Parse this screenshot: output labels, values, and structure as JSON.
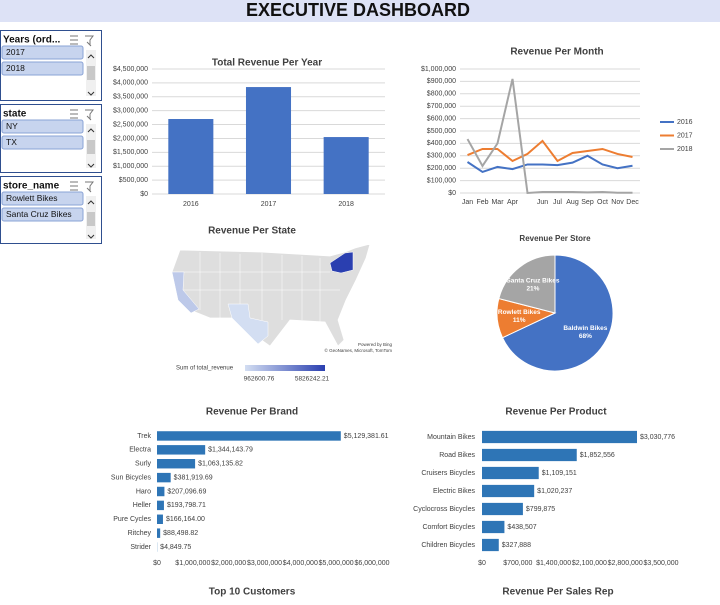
{
  "header": {
    "title": "EXECUTIVE DASHBOARD"
  },
  "slicers": [
    {
      "title": "Years (ord...",
      "items": [
        "2017",
        "2018"
      ]
    },
    {
      "title": "state",
      "items": [
        "NY",
        "TX"
      ]
    },
    {
      "title": "store_name",
      "items": [
        "Rowlett Bikes",
        "Santa Cruz Bikes"
      ]
    }
  ],
  "sections": [
    "Top 10 Customers",
    "Revenue Per Sales Rep"
  ],
  "chart_data": [
    {
      "type": "bar",
      "title": "Total Revenue Per Year",
      "categories": [
        "2016",
        "2017",
        "2018"
      ],
      "values": [
        2700000,
        3850000,
        2050000
      ],
      "color": "#4472c4",
      "grid": true,
      "ylim": [
        0,
        4500000
      ],
      "yticks": [
        {
          "value": 0,
          "label": "$0"
        },
        {
          "value": 500000,
          "label": "$500,000"
        },
        {
          "value": 1000000,
          "label": "$1,000,000"
        },
        {
          "value": 1500000,
          "label": "$1,500,000"
        },
        {
          "value": 2000000,
          "label": "$2,000,000"
        },
        {
          "value": 2500000,
          "label": "$2,500,000"
        },
        {
          "value": 3000000,
          "label": "$3,000,000"
        },
        {
          "value": 3500000,
          "label": "$3,500,000"
        },
        {
          "value": 4000000,
          "label": "$4,000,000"
        },
        {
          "value": 4500000,
          "label": "$4,500,000"
        }
      ]
    },
    {
      "type": "line",
      "title": "Revenue Per Month",
      "grid": true,
      "legend": "right",
      "categories": [
        "Jan",
        "Feb",
        "Mar",
        "Apr",
        null,
        "Jun",
        "Jul",
        "Aug",
        "Sep",
        "Oct",
        "Nov",
        "Dec"
      ],
      "series": [
        {
          "name": "2016",
          "color": "#4472c4",
          "values": [
            250000,
            170000,
            210000,
            193000,
            230000,
            230000,
            225000,
            245000,
            300000,
            230000,
            200000,
            220000
          ]
        },
        {
          "name": "2017",
          "color": "#ed7d31",
          "values": [
            306000,
            355000,
            355000,
            258000,
            315000,
            420000,
            258000,
            323000,
            339000,
            355000,
            315000,
            290000
          ]
        },
        {
          "name": "2018",
          "color": "#a5a5a5",
          "values": [
            435000,
            218000,
            400000,
            920000,
            0,
            8000,
            8000,
            8000,
            5000,
            8000,
            2000,
            2000
          ]
        }
      ],
      "ylim": [
        0,
        1000000
      ],
      "yticks": [
        {
          "value": 0,
          "label": "$0"
        },
        {
          "value": 100000,
          "label": "$100,000"
        },
        {
          "value": 200000,
          "label": "$200,000"
        },
        {
          "value": 300000,
          "label": "$300,000"
        },
        {
          "value": 400000,
          "label": "$400,000"
        },
        {
          "value": 500000,
          "label": "$500,000"
        },
        {
          "value": 600000,
          "label": "$600,000"
        },
        {
          "value": 700000,
          "label": "$700,000"
        },
        {
          "value": 800000,
          "label": "$800,000"
        },
        {
          "value": 900000,
          "label": "$900,000"
        },
        {
          "value": 1000000,
          "label": "$1,000,000"
        }
      ]
    },
    {
      "type": "map",
      "title": "Revenue Per State",
      "legend_title": "Sum of total_revenue",
      "values": [
        1605000,
        962600.76,
        5826242.21
      ],
      "color_range": [
        962600.76,
        5826242.21
      ],
      "colors": [
        "#d3def2",
        "#2a3fb0"
      ],
      "base_color": "#dedede",
      "credits": [
        "Powered by Bing",
        "© GeoNames, Microsoft, TomTom"
      ]
    },
    {
      "type": "pie",
      "title": "Revenue Per Store",
      "categories": [
        "Baldwin Bikes",
        "Rowlett Bikes",
        "Santa Cruz Bikes"
      ],
      "values": [
        68,
        11,
        21
      ],
      "value_labels": [
        "68%",
        "11%",
        "21%"
      ],
      "colors": [
        "#4472c4",
        "#ed7d31",
        "#a5a5a5"
      ]
    },
    {
      "type": "bar",
      "horizontal": true,
      "title": "Revenue Per Brand",
      "color": "#2e75b6",
      "grid": false,
      "categories": [
        "Trek",
        "Electra",
        "Surly",
        "Sun Bicycles",
        "Haro",
        "Heller",
        "Pure Cycles",
        "Ritchey",
        "Strider"
      ],
      "values": [
        5129381.61,
        1344143.79,
        1063135.82,
        381919.69,
        207096.69,
        193798.71,
        166164.0,
        88498.82,
        4849.75
      ],
      "value_labels": [
        "$5,129,381.61",
        "$1,344,143.79",
        "$1,063,135.82",
        "$381,919.69",
        "$207,096.69",
        "$193,798.71",
        "$166,164.00",
        "$88,498.82",
        "$4,849.75"
      ],
      "xlim": [
        0,
        6000000
      ],
      "xticks": [
        {
          "value": 0,
          "label": "$0"
        },
        {
          "value": 1000000,
          "label": "$1,000,000"
        },
        {
          "value": 2000000,
          "label": "$2,000,000"
        },
        {
          "value": 3000000,
          "label": "$3,000,000"
        },
        {
          "value": 4000000,
          "label": "$4,000,000"
        },
        {
          "value": 5000000,
          "label": "$5,000,000"
        },
        {
          "value": 6000000,
          "label": "$6,000,000"
        }
      ]
    },
    {
      "type": "bar",
      "horizontal": true,
      "title": "Revenue Per Product",
      "color": "#2e75b6",
      "grid": false,
      "categories": [
        "Mountain Bikes",
        "Road Bikes",
        "Cruisers Bicycles",
        "Electric Bikes",
        "Cyclocross Bicycles",
        "Comfort Bicycles",
        "Children Bicycles"
      ],
      "values": [
        3030776,
        1852556,
        1109151,
        1020237,
        799875,
        438507,
        327888
      ],
      "value_labels": [
        "$3,030,776",
        "$1,852,556",
        "$1,109,151",
        "$1,020,237",
        "$799,875",
        "$438,507",
        "$327,888"
      ],
      "xlim": [
        0,
        3500000
      ],
      "xticks": [
        {
          "value": 0,
          "label": "$0"
        },
        {
          "value": 700000,
          "label": "$700,000"
        },
        {
          "value": 1400000,
          "label": "$1,400,000"
        },
        {
          "value": 2100000,
          "label": "$2,100,000"
        },
        {
          "value": 2800000,
          "label": "$2,800,000"
        },
        {
          "value": 3500000,
          "label": "$3,500,000"
        }
      ]
    }
  ]
}
